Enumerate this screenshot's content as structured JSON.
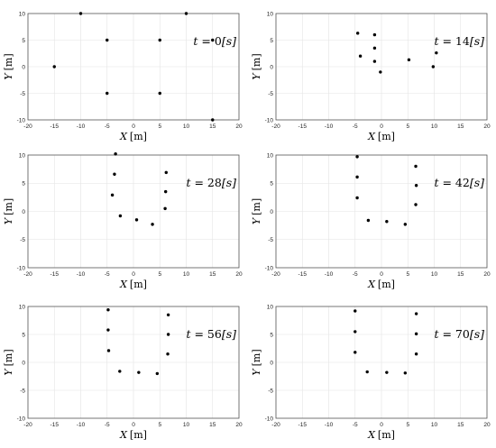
{
  "chart_data": [
    {
      "type": "scatter",
      "title_prefix": "t = ",
      "time_value": "0",
      "time_unit": "[s]",
      "xlabel": "X",
      "xunit": "[m]",
      "ylabel": "Y",
      "yunit": "[m]",
      "xlim": [
        -20,
        20
      ],
      "ylim": [
        -10,
        10
      ],
      "xticks": [
        -20,
        -15,
        -10,
        -5,
        0,
        5,
        10,
        15,
        20
      ],
      "yticks": [
        -10,
        -5,
        0,
        5,
        10
      ],
      "grid": true,
      "points": [
        [
          -10,
          10
        ],
        [
          10,
          10
        ],
        [
          -5,
          5
        ],
        [
          5,
          5
        ],
        [
          15,
          5
        ],
        [
          -15,
          0
        ],
        [
          -5,
          -5
        ],
        [
          5,
          -5
        ],
        [
          15,
          -10
        ]
      ]
    },
    {
      "type": "scatter",
      "title_prefix": "t = ",
      "time_value": "14",
      "time_unit": "[s]",
      "xlabel": "X",
      "xunit": "[m]",
      "ylabel": "Y",
      "yunit": "[m]",
      "xlim": [
        -20,
        20
      ],
      "ylim": [
        -10,
        10
      ],
      "xticks": [
        -20,
        -15,
        -10,
        -5,
        0,
        5,
        10,
        15,
        20
      ],
      "yticks": [
        -10,
        -5,
        0,
        5,
        10
      ],
      "grid": true,
      "points": [
        [
          -4.5,
          6.3
        ],
        [
          -1.3,
          6.0
        ],
        [
          -1.3,
          3.5
        ],
        [
          -4.0,
          2.0
        ],
        [
          -1.3,
          1.0
        ],
        [
          -0.2,
          -1.0
        ],
        [
          5.2,
          1.3
        ],
        [
          9.8,
          0.0
        ],
        [
          10.4,
          2.6
        ]
      ]
    },
    {
      "type": "scatter",
      "title_prefix": "t = ",
      "time_value": "28",
      "time_unit": "[s]",
      "xlabel": "X",
      "xunit": "[m]",
      "ylabel": "Y",
      "yunit": "[m]",
      "xlim": [
        -20,
        20
      ],
      "ylim": [
        -10,
        10
      ],
      "xticks": [
        -20,
        -15,
        -10,
        -5,
        0,
        5,
        10,
        15,
        20
      ],
      "yticks": [
        -10,
        -5,
        0,
        5,
        10
      ],
      "grid": true,
      "points": [
        [
          -3.4,
          10.2
        ],
        [
          -3.6,
          6.6
        ],
        [
          -4.0,
          2.9
        ],
        [
          -2.5,
          -0.8
        ],
        [
          0.6,
          -1.5
        ],
        [
          3.6,
          -2.3
        ],
        [
          6.0,
          0.5
        ],
        [
          6.1,
          3.5
        ],
        [
          6.2,
          6.9
        ]
      ]
    },
    {
      "type": "scatter",
      "title_prefix": "t = ",
      "time_value": "42",
      "time_unit": "[s]",
      "xlabel": "X",
      "xunit": "[m]",
      "ylabel": "Y",
      "yunit": "[m]",
      "xlim": [
        -20,
        20
      ],
      "ylim": [
        -10,
        10
      ],
      "xticks": [
        -20,
        -15,
        -10,
        -5,
        0,
        5,
        10,
        15,
        20
      ],
      "yticks": [
        -10,
        -5,
        0,
        5,
        10
      ],
      "grid": true,
      "points": [
        [
          -4.6,
          9.7
        ],
        [
          -4.6,
          6.1
        ],
        [
          -4.6,
          2.4
        ],
        [
          -2.5,
          -1.6
        ],
        [
          1.0,
          -1.8
        ],
        [
          4.5,
          -2.3
        ],
        [
          6.5,
          1.2
        ],
        [
          6.6,
          4.6
        ],
        [
          6.5,
          8.0
        ]
      ]
    },
    {
      "type": "scatter",
      "title_prefix": "t = ",
      "time_value": "56",
      "time_unit": "[s]",
      "xlabel": "X",
      "xunit": "[m]",
      "ylabel": "Y",
      "yunit": "[m]",
      "xlim": [
        -20,
        20
      ],
      "ylim": [
        -10,
        10
      ],
      "xticks": [
        -20,
        -15,
        -10,
        -5,
        0,
        5,
        10,
        15,
        20
      ],
      "yticks": [
        -10,
        -5,
        0,
        5,
        10
      ],
      "grid": true,
      "points": [
        [
          -4.8,
          9.4
        ],
        [
          -4.8,
          5.8
        ],
        [
          -4.7,
          2.1
        ],
        [
          -2.6,
          -1.6
        ],
        [
          1.0,
          -1.8
        ],
        [
          4.5,
          -2.0
        ],
        [
          6.5,
          1.5
        ],
        [
          6.6,
          5.0
        ],
        [
          6.6,
          8.5
        ]
      ]
    },
    {
      "type": "scatter",
      "title_prefix": "t = ",
      "time_value": "70",
      "time_unit": "[s]",
      "xlabel": "X",
      "xunit": "[m]",
      "ylabel": "Y",
      "yunit": "[m]",
      "xlim": [
        -20,
        20
      ],
      "ylim": [
        -10,
        10
      ],
      "xticks": [
        -20,
        -15,
        -10,
        -5,
        0,
        5,
        10,
        15,
        20
      ],
      "yticks": [
        -10,
        -5,
        0,
        5,
        10
      ],
      "grid": true,
      "points": [
        [
          -5.0,
          9.2
        ],
        [
          -5.0,
          5.5
        ],
        [
          -5.0,
          1.8
        ],
        [
          -2.7,
          -1.7
        ],
        [
          1.0,
          -1.8
        ],
        [
          4.5,
          -1.9
        ],
        [
          6.6,
          1.5
        ],
        [
          6.6,
          5.1
        ],
        [
          6.6,
          8.7
        ]
      ]
    }
  ]
}
